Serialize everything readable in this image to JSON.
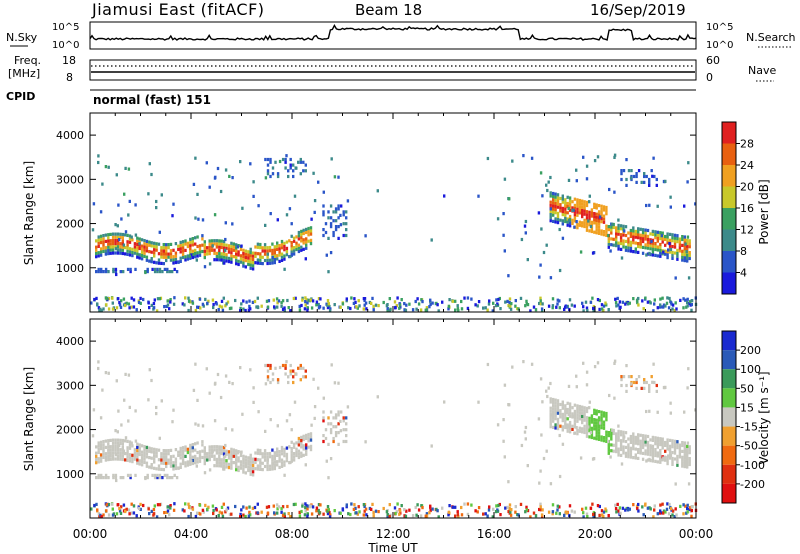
{
  "header": {
    "station": "Jiamusi East (fitACF)",
    "beam": "Beam 18",
    "date": "16/Sep/2019"
  },
  "noise_panel": {
    "left_label": "N.Sky",
    "right_label": "N.Search",
    "tick_top": "10^5",
    "tick_bottom": "10^0"
  },
  "freq_panel": {
    "left_label_1": "Freq.",
    "left_label_2": "[MHz]",
    "left_ticks": [
      "18",
      "8"
    ],
    "right_label": "Nave",
    "right_ticks": [
      "60",
      "0"
    ]
  },
  "cpid_panel": {
    "label": "CPID",
    "value": "normal (fast) 151"
  },
  "chart_data": [
    {
      "type": "heatmap",
      "quantity": "Power",
      "ylabel": "Slant Range [km]",
      "xlabel": "Time UT",
      "x_ticks": [
        "00:00",
        "04:00",
        "08:00",
        "12:00",
        "16:00",
        "20:00",
        "00:00"
      ],
      "x_range_hours": [
        0,
        24
      ],
      "y_ticks": [
        1000,
        2000,
        3000,
        4000
      ],
      "y_range": [
        0,
        4500
      ],
      "colorbar": {
        "label": "Power [dB]",
        "ticks": [
          "4",
          "8",
          "12",
          "16",
          "20",
          "24",
          "28"
        ],
        "colors": [
          "#1a1adc",
          "#2a55c8",
          "#3c8a8a",
          "#3aa060",
          "#c8c82a",
          "#f0a020",
          "#e86010",
          "#e02020"
        ]
      },
      "bands": [
        {
          "t0": 0.2,
          "t1": 8.8,
          "r0": 1250,
          "r1": 1750,
          "kind": "main"
        },
        {
          "t0": 0.2,
          "t1": 3.5,
          "r0": 950,
          "r1": 1050,
          "kind": "thin"
        },
        {
          "t0": 6.9,
          "t1": 8.6,
          "r0": 3100,
          "r1": 3550,
          "kind": "patch"
        },
        {
          "t0": 9.2,
          "t1": 10.2,
          "r0": 1700,
          "r1": 2500,
          "kind": "spike"
        },
        {
          "t0": 18.2,
          "t1": 20.5,
          "r0": 1900,
          "r1": 2600,
          "kind": "main"
        },
        {
          "t0": 20.5,
          "t1": 23.8,
          "r0": 1300,
          "r1": 1900,
          "kind": "main"
        },
        {
          "t0": 21.0,
          "t1": 22.5,
          "r0": 2900,
          "r1": 3300,
          "kind": "patch"
        }
      ]
    },
    {
      "type": "heatmap",
      "quantity": "Velocity",
      "ylabel": "Slant Range [km]",
      "xlabel": "Time UT",
      "x_ticks": [
        "00:00",
        "04:00",
        "08:00",
        "12:00",
        "16:00",
        "20:00",
        "00:00"
      ],
      "x_range_hours": [
        0,
        24
      ],
      "y_ticks": [
        1000,
        2000,
        3000,
        4000
      ],
      "y_range": [
        0,
        4500
      ],
      "colorbar": {
        "label": "Velocity [m s⁻¹]",
        "ticks": [
          "200",
          "100",
          "50",
          "15",
          "-15",
          "-50",
          "-100",
          "-200"
        ],
        "colors": [
          "#1a2ad0",
          "#2a5ab8",
          "#3a9a5a",
          "#60c840",
          "#c8c8c0",
          "#f0a030",
          "#f06a10",
          "#e03010",
          "#e01010"
        ]
      }
    }
  ]
}
